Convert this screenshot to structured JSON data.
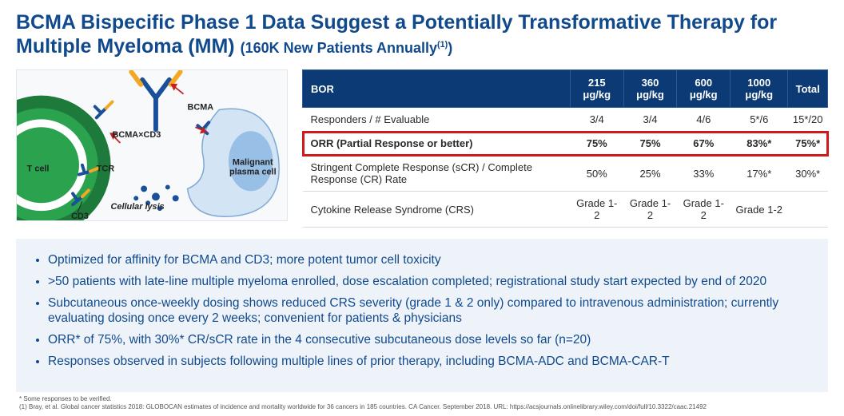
{
  "title_main": "BCMA Bispecific Phase 1 Data Suggest a Potentially Transformative Therapy for Multiple Myeloma (MM) ",
  "title_sub_open": "(",
  "title_sub": "160K New Patients Annually",
  "title_sub_sup": "(1)",
  "title_sub_close": ")",
  "diagram": {
    "labels": {
      "bcma_cd3": "BCMA×CD3",
      "bcma": "BCMA",
      "tcell": "T cell",
      "tcr": "TCR",
      "cd3": "CD3",
      "lysis": "Cellular lysis",
      "malignant1": "Malignant",
      "malignant2": "plasma cell"
    },
    "colors": {
      "tcell_outer": "#1e7a3a",
      "tcell_inner": "#2aa24e",
      "plasma": "#d3e4f5",
      "plasma_inner": "#98bfe6",
      "antibody_y": "#1a4f99",
      "antibody_arm": "#f5a623",
      "arrow": "#c62020",
      "lysis_dot": "#1a4f99"
    }
  },
  "table": {
    "header_bg": "#0b3a75",
    "header_fg": "#ffffff",
    "highlight_border": "#d11919",
    "columns": [
      "BOR",
      "215 μg/kg",
      "360 μg/kg",
      "600 μg/kg",
      "1000 μg/kg",
      "Total"
    ],
    "rows": [
      {
        "highlight": false,
        "cells": [
          "Responders / # Evaluable",
          "3/4",
          "3/4",
          "4/6",
          "5*/6",
          "15*/20"
        ]
      },
      {
        "highlight": true,
        "cells": [
          "ORR (Partial Response or better)",
          "75%",
          "75%",
          "67%",
          "83%*",
          "75%*"
        ]
      },
      {
        "highlight": false,
        "cells": [
          "Stringent Complete Response (sCR) / Complete Response (CR) Rate",
          "50%",
          "25%",
          "33%",
          "17%*",
          "30%*"
        ]
      },
      {
        "highlight": false,
        "cells": [
          "Cytokine Release Syndrome (CRS)",
          "Grade 1-2",
          "Grade 1-2",
          "Grade 1-2",
          "Grade 1-2",
          ""
        ]
      }
    ]
  },
  "bullets": [
    "Optimized for affinity for BCMA and CD3; more potent tumor cell toxicity",
    ">50 patients with late-line multiple myeloma enrolled, dose escalation completed; registrational study start expected by end of 2020",
    "Subcutaneous once-weekly dosing shows reduced CRS severity (grade 1 & 2 only) compared to intravenous administration; currently evaluating dosing once every 2 weeks; convenient for patients & physicians",
    "ORR* of 75%, with 30%* CR/sCR rate in the 4 consecutive subcutaneous dose levels so far (n=20)",
    "Responses observed in subjects following multiple lines of prior therapy, including BCMA-ADC and BCMA-CAR-T"
  ],
  "footnotes": [
    "* Some responses to be verified.",
    "(1) Bray, et al. Global cancer statistics 2018: GLOBOCAN estimates of incidence and mortality worldwide for 36 cancers in 185 countries. CA Cancer. September 2018. URL: https://acsjournals.onlinelibrary.wiley.com/doi/full/10.3322/caac.21492"
  ]
}
